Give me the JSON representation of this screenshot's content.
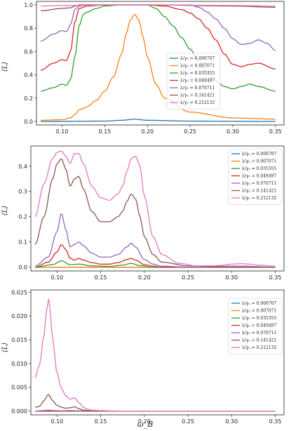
{
  "colors": [
    "#1f77b4",
    "#ff7f0e",
    "#2ca02c",
    "#d62728",
    "#9467bd",
    "#8c564b",
    "#e377c2"
  ],
  "chart_data": [
    {
      "type": "line",
      "xlim": [
        0.07,
        0.36
      ],
      "ylim": [
        -0.03,
        1.03
      ],
      "ylabel": "⟨L⟩",
      "xlabel": "",
      "xticks": [
        0.1,
        0.15,
        0.2,
        0.25,
        0.3,
        0.35
      ],
      "xtick_labels": [
        "0.10",
        "0.15",
        "0.20",
        "0.25",
        "0.30",
        "0.35"
      ],
      "yticks": [
        0.0,
        0.2,
        0.4,
        0.6,
        0.8,
        1.0
      ],
      "ytick_labels": [
        "0.0",
        "0.2",
        "0.4",
        "0.6",
        "0.8",
        "1.0"
      ],
      "legend_position": "center-right",
      "series": [
        {
          "name": "λ/γ₂ = 0.000707",
          "x": [
            0.075,
            0.15,
            0.17,
            0.185,
            0.2,
            0.25,
            0.35
          ],
          "y": [
            0.0,
            0.003,
            0.01,
            0.02,
            0.01,
            0.003,
            0.0
          ]
        },
        {
          "name": "λ/γ₂ = 0.007071",
          "x": [
            0.075,
            0.1,
            0.11,
            0.115,
            0.12,
            0.125,
            0.13,
            0.14,
            0.15,
            0.16,
            0.17,
            0.175,
            0.18,
            0.185,
            0.19,
            0.195,
            0.2,
            0.21,
            0.22,
            0.25,
            0.3,
            0.35
          ],
          "y": [
            0.01,
            0.015,
            0.03,
            0.06,
            0.1,
            0.11,
            0.13,
            0.18,
            0.26,
            0.38,
            0.58,
            0.75,
            0.87,
            0.92,
            0.87,
            0.72,
            0.55,
            0.32,
            0.2,
            0.08,
            0.03,
            0.02
          ]
        },
        {
          "name": "λ/γ₂ = 0.035355",
          "x": [
            0.075,
            0.09,
            0.1,
            0.105,
            0.11,
            0.115,
            0.12,
            0.125,
            0.13,
            0.14,
            0.15,
            0.17,
            0.2,
            0.21,
            0.22,
            0.23,
            0.24,
            0.25,
            0.26,
            0.27,
            0.28,
            0.29,
            0.3,
            0.31,
            0.32,
            0.33,
            0.35
          ],
          "y": [
            0.26,
            0.29,
            0.32,
            0.31,
            0.36,
            0.55,
            0.82,
            0.92,
            0.94,
            0.97,
            0.99,
            1.0,
            1.0,
            0.97,
            0.9,
            0.82,
            0.72,
            0.62,
            0.52,
            0.42,
            0.35,
            0.3,
            0.28,
            0.3,
            0.32,
            0.3,
            0.26
          ]
        },
        {
          "name": "λ/γ₂ = 0.049497",
          "x": [
            0.075,
            0.09,
            0.1,
            0.105,
            0.11,
            0.115,
            0.12,
            0.13,
            0.15,
            0.2,
            0.22,
            0.24,
            0.25,
            0.26,
            0.27,
            0.28,
            0.29,
            0.3,
            0.31,
            0.32,
            0.33,
            0.35
          ],
          "y": [
            0.44,
            0.5,
            0.53,
            0.52,
            0.6,
            0.85,
            0.97,
            0.99,
            1.0,
            1.0,
            0.99,
            0.96,
            0.93,
            0.88,
            0.8,
            0.7,
            0.58,
            0.49,
            0.47,
            0.49,
            0.5,
            0.45
          ]
        },
        {
          "name": "λ/γ₂ = 0.070711",
          "x": [
            0.075,
            0.09,
            0.1,
            0.105,
            0.11,
            0.115,
            0.12,
            0.13,
            0.15,
            0.2,
            0.25,
            0.26,
            0.27,
            0.28,
            0.29,
            0.3,
            0.31,
            0.32,
            0.33,
            0.34,
            0.35
          ],
          "y": [
            0.69,
            0.75,
            0.78,
            0.77,
            0.83,
            0.96,
            0.99,
            1.0,
            1.0,
            1.0,
            1.0,
            0.98,
            0.94,
            0.88,
            0.8,
            0.71,
            0.66,
            0.67,
            0.7,
            0.67,
            0.61
          ]
        },
        {
          "name": "λ/γ₂ = 0.141421",
          "x": [
            0.075,
            0.1,
            0.11,
            0.115,
            0.12,
            0.13,
            0.2,
            0.3,
            0.35
          ],
          "y": [
            0.95,
            0.97,
            0.975,
            0.99,
            1.0,
            1.0,
            1.0,
            0.99,
            0.98
          ]
        },
        {
          "name": "λ/γ₂ = 0.212132",
          "x": [
            0.075,
            0.1,
            0.2,
            0.3,
            0.35
          ],
          "y": [
            0.99,
            0.995,
            1.0,
            0.995,
            0.99
          ]
        }
      ]
    },
    {
      "type": "line",
      "xlim": [
        0.07,
        0.36
      ],
      "ylim": [
        -0.015,
        0.48
      ],
      "ylabel": "⟨L⟩",
      "xlabel": "",
      "xticks": [
        0.1,
        0.15,
        0.2,
        0.25,
        0.3,
        0.35
      ],
      "xtick_labels": [
        "0.10",
        "0.15",
        "0.20",
        "0.25",
        "0.30",
        "0.35"
      ],
      "yticks": [
        0.0,
        0.1,
        0.2,
        0.3,
        0.4
      ],
      "ytick_labels": [
        "0.0",
        "0.1",
        "0.2",
        "0.3",
        "0.4"
      ],
      "legend_position": "top-right",
      "series": [
        {
          "name": "λ/γ₂ = 0.000707",
          "x": [
            0.075,
            0.35
          ],
          "y": [
            0.0,
            0.0
          ]
        },
        {
          "name": "λ/γ₂ = 0.007071",
          "x": [
            0.075,
            0.35
          ],
          "y": [
            0.0,
            0.0
          ]
        },
        {
          "name": "λ/γ₂ = 0.035355",
          "x": [
            0.075,
            0.095,
            0.105,
            0.115,
            0.125,
            0.14,
            0.16,
            0.175,
            0.185,
            0.195,
            0.21,
            0.35
          ],
          "y": [
            0.0,
            0.01,
            0.025,
            0.01,
            0.012,
            0.005,
            0.003,
            0.008,
            0.015,
            0.006,
            0.0,
            0.0
          ]
        },
        {
          "name": "λ/γ₂ = 0.049497",
          "x": [
            0.075,
            0.09,
            0.1,
            0.105,
            0.11,
            0.115,
            0.12,
            0.125,
            0.13,
            0.14,
            0.15,
            0.16,
            0.17,
            0.18,
            0.185,
            0.19,
            0.2,
            0.21,
            0.22,
            0.3,
            0.35
          ],
          "y": [
            0.0,
            0.02,
            0.06,
            0.09,
            0.07,
            0.035,
            0.028,
            0.035,
            0.028,
            0.018,
            0.012,
            0.012,
            0.018,
            0.03,
            0.035,
            0.028,
            0.01,
            0.004,
            0.0,
            0.0,
            0.0
          ]
        },
        {
          "name": "λ/γ₂ = 0.070711",
          "x": [
            0.075,
            0.09,
            0.1,
            0.105,
            0.11,
            0.115,
            0.12,
            0.125,
            0.13,
            0.14,
            0.15,
            0.16,
            0.17,
            0.18,
            0.185,
            0.19,
            0.2,
            0.21,
            0.22,
            0.25,
            0.3,
            0.31,
            0.35
          ],
          "y": [
            0.005,
            0.04,
            0.14,
            0.215,
            0.15,
            0.08,
            0.09,
            0.1,
            0.085,
            0.055,
            0.04,
            0.04,
            0.05,
            0.08,
            0.095,
            0.08,
            0.03,
            0.012,
            0.004,
            0.0,
            0.004,
            0.004,
            0.0
          ]
        },
        {
          "name": "λ/γ₂ = 0.141421",
          "x": [
            0.075,
            0.085,
            0.095,
            0.1,
            0.105,
            0.11,
            0.115,
            0.12,
            0.125,
            0.13,
            0.14,
            0.15,
            0.16,
            0.17,
            0.175,
            0.18,
            0.185,
            0.19,
            0.195,
            0.2,
            0.21,
            0.22,
            0.25,
            0.3,
            0.35
          ],
          "y": [
            0.09,
            0.2,
            0.35,
            0.41,
            0.43,
            0.39,
            0.32,
            0.35,
            0.36,
            0.31,
            0.22,
            0.18,
            0.18,
            0.2,
            0.22,
            0.26,
            0.29,
            0.27,
            0.2,
            0.12,
            0.05,
            0.02,
            0.005,
            0.0,
            0.0
          ]
        },
        {
          "name": "λ/γ₂ = 0.212132",
          "x": [
            0.075,
            0.085,
            0.095,
            0.1,
            0.105,
            0.11,
            0.115,
            0.12,
            0.125,
            0.13,
            0.14,
            0.15,
            0.16,
            0.17,
            0.175,
            0.18,
            0.185,
            0.19,
            0.195,
            0.2,
            0.21,
            0.22,
            0.24,
            0.26,
            0.28,
            0.29,
            0.3,
            0.31,
            0.32,
            0.33,
            0.35
          ],
          "y": [
            0.2,
            0.33,
            0.43,
            0.455,
            0.46,
            0.44,
            0.41,
            0.45,
            0.45,
            0.41,
            0.32,
            0.275,
            0.265,
            0.29,
            0.32,
            0.38,
            0.43,
            0.44,
            0.4,
            0.28,
            0.12,
            0.05,
            0.015,
            0.005,
            0.005,
            0.008,
            0.012,
            0.014,
            0.012,
            0.008,
            0.004
          ]
        }
      ]
    },
    {
      "type": "line",
      "xlim": [
        0.07,
        0.36
      ],
      "ylim": [
        -0.0008,
        0.0255
      ],
      "ylabel": "⟨L⟩",
      "xlabel": "ω_B",
      "xticks": [
        0.1,
        0.15,
        0.2,
        0.25,
        0.3,
        0.35
      ],
      "xtick_labels": [
        "0.10",
        "0.15",
        "0.20",
        "0.25",
        "0.30",
        "0.35"
      ],
      "yticks": [
        0.0,
        0.005,
        0.01,
        0.015,
        0.02,
        0.025
      ],
      "ytick_labels": [
        "0.000",
        "0.005",
        "0.010",
        "0.015",
        "0.020",
        "0.025"
      ],
      "legend_position": "top-right",
      "series": [
        {
          "name": "λ/γ₂ = 0.000707",
          "x": [
            0.075,
            0.35
          ],
          "y": [
            0.0,
            0.0
          ]
        },
        {
          "name": "λ/γ₂ = 0.007071",
          "x": [
            0.075,
            0.35
          ],
          "y": [
            0.0,
            0.0
          ]
        },
        {
          "name": "λ/γ₂ = 0.035355",
          "x": [
            0.075,
            0.35
          ],
          "y": [
            0.0,
            0.0
          ]
        },
        {
          "name": "λ/γ₂ = 0.049497",
          "x": [
            0.075,
            0.35
          ],
          "y": [
            0.0,
            0.0
          ]
        },
        {
          "name": "λ/γ₂ = 0.070711",
          "x": [
            0.075,
            0.085,
            0.09,
            0.095,
            0.105,
            0.115,
            0.125,
            0.14,
            0.35
          ],
          "y": [
            0.0,
            0.0001,
            0.0002,
            0.0001,
            5e-05,
            0.0001,
            5e-05,
            0.0,
            0.0
          ]
        },
        {
          "name": "λ/γ₂ = 0.141421",
          "x": [
            0.075,
            0.08,
            0.085,
            0.09,
            0.095,
            0.1,
            0.105,
            0.11,
            0.115,
            0.12,
            0.125,
            0.13,
            0.14,
            0.15,
            0.35
          ],
          "y": [
            0.0008,
            0.001,
            0.0022,
            0.0035,
            0.0022,
            0.0012,
            0.0008,
            0.0006,
            0.0007,
            0.0009,
            0.0005,
            0.0002,
            5e-05,
            0.0,
            0.0
          ]
        },
        {
          "name": "λ/γ₂ = 0.212132",
          "x": [
            0.075,
            0.08,
            0.085,
            0.088,
            0.09,
            0.092,
            0.095,
            0.1,
            0.105,
            0.11,
            0.115,
            0.12,
            0.125,
            0.13,
            0.135,
            0.14,
            0.15,
            0.17,
            0.2,
            0.35
          ],
          "y": [
            0.007,
            0.0098,
            0.016,
            0.021,
            0.024,
            0.021,
            0.015,
            0.008,
            0.0048,
            0.0032,
            0.0025,
            0.0028,
            0.0018,
            0.0008,
            0.0004,
            0.0002,
            0.0001,
            0.0,
            0.0,
            0.0
          ]
        }
      ]
    }
  ]
}
